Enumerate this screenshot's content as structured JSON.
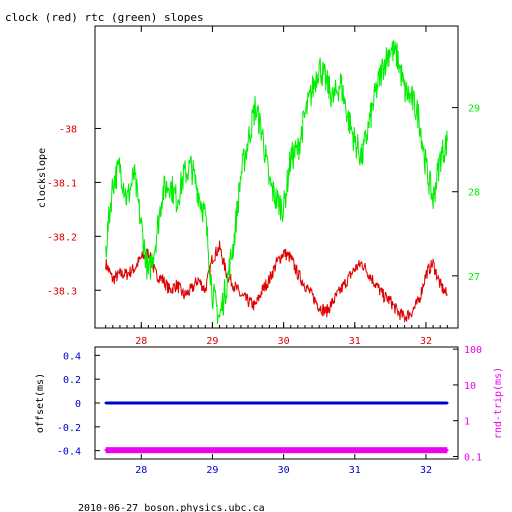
{
  "title": "clock (red) rtc (green) slopes",
  "footer": "2010-06-27 boson.physics.ubc.ca",
  "colors": {
    "clock": "#dd0000",
    "rtc": "#00ee00",
    "offset": "#0000cc",
    "rndtrip": "#ee00ee",
    "axes": "#000000"
  },
  "chart_data": [
    {
      "type": "line",
      "title": "clock (red) rtc (green) slopes",
      "xlabel": "",
      "ylabel": "clockslope",
      "xlim": [
        27.35,
        32.45
      ],
      "ylim": [
        -38.37,
        -37.81
      ],
      "y2lim": [
        26.38,
        29.97
      ],
      "x_ticks": [
        28,
        29,
        30,
        31,
        32
      ],
      "x_tick_labels": [
        "28",
        "29",
        "30",
        "31",
        "32"
      ],
      "y_ticks": [
        -38,
        -38.1,
        -38.2,
        -38.3
      ],
      "y_tick_labels": [
        "-38",
        "-38.1",
        "-38.2",
        "-38.3"
      ],
      "y2_ticks": [
        27,
        28,
        29
      ],
      "y2_tick_labels": [
        "27",
        "28",
        "29"
      ],
      "grid": false,
      "series": [
        {
          "name": "clock",
          "axis": "left",
          "x": [
            27.5,
            27.6,
            27.7,
            27.8,
            27.9,
            28.0,
            28.1,
            28.2,
            28.3,
            28.4,
            28.5,
            28.6,
            28.7,
            28.8,
            28.9,
            29.0,
            29.1,
            29.2,
            29.3,
            29.4,
            29.5,
            29.6,
            29.7,
            29.8,
            29.9,
            30.0,
            30.1,
            30.2,
            30.3,
            30.4,
            30.5,
            30.6,
            30.7,
            30.8,
            30.9,
            31.0,
            31.1,
            31.2,
            31.3,
            31.4,
            31.5,
            31.6,
            31.7,
            31.8,
            31.9,
            32.0,
            32.1,
            32.2,
            32.3
          ],
          "values": [
            -38.25,
            -38.28,
            -38.27,
            -38.27,
            -38.26,
            -38.24,
            -38.23,
            -38.27,
            -38.28,
            -38.3,
            -38.29,
            -38.31,
            -38.3,
            -38.28,
            -38.3,
            -38.24,
            -38.22,
            -38.27,
            -38.29,
            -38.31,
            -38.32,
            -38.33,
            -38.3,
            -38.28,
            -38.25,
            -38.23,
            -38.24,
            -38.27,
            -38.29,
            -38.31,
            -38.33,
            -38.34,
            -38.32,
            -38.3,
            -38.28,
            -38.26,
            -38.25,
            -38.27,
            -38.29,
            -38.31,
            -38.32,
            -38.34,
            -38.35,
            -38.34,
            -38.32,
            -38.27,
            -38.25,
            -38.29,
            -38.31
          ]
        },
        {
          "name": "rtc",
          "axis": "right",
          "x": [
            27.5,
            27.6,
            27.7,
            27.8,
            27.9,
            28.0,
            28.1,
            28.2,
            28.3,
            28.4,
            28.5,
            28.6,
            28.7,
            28.8,
            28.9,
            29.0,
            29.1,
            29.2,
            29.3,
            29.4,
            29.5,
            29.6,
            29.7,
            29.8,
            29.9,
            30.0,
            30.1,
            30.2,
            30.3,
            30.4,
            30.5,
            30.6,
            30.7,
            30.8,
            30.9,
            31.0,
            31.1,
            31.2,
            31.3,
            31.4,
            31.5,
            31.6,
            31.7,
            31.8,
            31.9,
            32.0,
            32.1,
            32.2,
            32.3
          ],
          "values": [
            27.3,
            28.1,
            28.3,
            27.9,
            28.2,
            27.6,
            27.0,
            27.4,
            28.0,
            28.1,
            27.9,
            28.2,
            28.3,
            28.0,
            27.7,
            26.8,
            26.5,
            26.9,
            27.4,
            28.2,
            28.6,
            29.0,
            28.7,
            28.1,
            27.9,
            27.8,
            28.4,
            28.5,
            28.9,
            29.2,
            29.5,
            29.3,
            29.1,
            29.3,
            28.9,
            28.6,
            28.4,
            28.8,
            29.2,
            29.5,
            29.7,
            29.6,
            29.2,
            29.1,
            28.9,
            28.3,
            27.9,
            28.4,
            28.6
          ]
        }
      ]
    },
    {
      "type": "scatter",
      "title": "",
      "xlabel": "",
      "ylabel": "offset(ms)",
      "y2label": "rnd-trip(ms)",
      "xlim": [
        27.35,
        32.45
      ],
      "ylim": [
        -0.47,
        0.47
      ],
      "y2lim": [
        0.085,
        115
      ],
      "y2_scale": "log",
      "x_ticks": [
        28,
        29,
        30,
        31,
        32
      ],
      "x_tick_labels": [
        "28",
        "29",
        "30",
        "31",
        "32"
      ],
      "y_ticks": [
        0.4,
        0.2,
        0,
        -0.2,
        -0.4
      ],
      "y_tick_labels": [
        "0.4",
        "0.2",
        "0",
        "-0.2",
        "-0.4"
      ],
      "y2_ticks": [
        100,
        10,
        1,
        0.1
      ],
      "y2_tick_labels": [
        "100",
        "10",
        "1",
        "0.1"
      ],
      "grid": false,
      "series": [
        {
          "name": "offset",
          "axis": "left",
          "x": [
            27.5,
            28.0,
            28.5,
            29.0,
            29.5,
            30.0,
            30.5,
            31.0,
            31.5,
            32.0,
            32.3
          ],
          "values": [
            0,
            0,
            0,
            0,
            0,
            0,
            0,
            0,
            0,
            0,
            0
          ]
        },
        {
          "name": "rnd-trip",
          "axis": "right",
          "x": [
            27.5,
            28.0,
            28.5,
            29.0,
            29.5,
            30.0,
            30.5,
            31.0,
            31.5,
            32.0,
            32.3
          ],
          "values": [
            0.15,
            0.15,
            0.15,
            0.15,
            0.15,
            0.15,
            0.15,
            0.15,
            0.15,
            0.15,
            0.15
          ]
        }
      ]
    }
  ]
}
